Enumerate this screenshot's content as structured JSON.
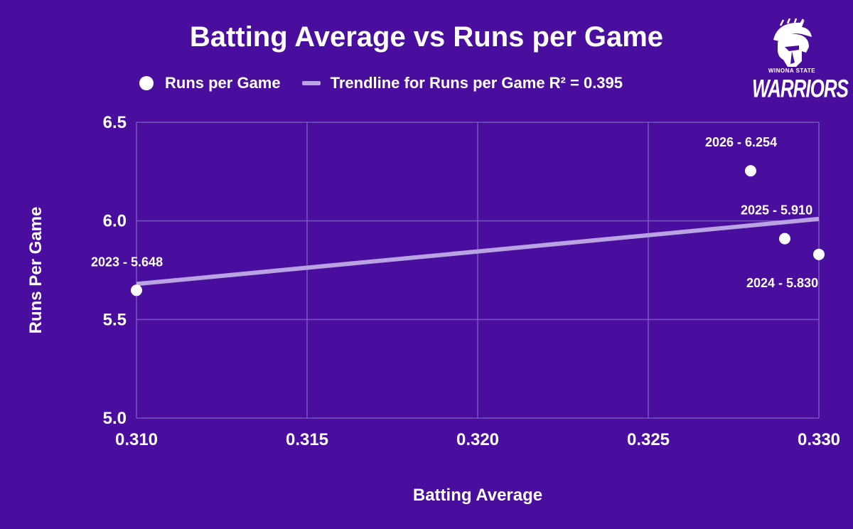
{
  "logo": {
    "subtitle": "WINONA STATE",
    "name": "WARRIORS",
    "icon": "warrior-helmet-icon"
  },
  "colors": {
    "background": "#4a0e9e",
    "grid": "#7a55c0",
    "trendline": "#b9a3e3",
    "points": "#ffffff"
  },
  "legend": {
    "series_label": "Runs per Game",
    "trend_label": "Trendline for Runs per Game R² = 0.395"
  },
  "chart_data": {
    "type": "scatter",
    "title": "Batting Average vs Runs per Game",
    "xlabel": "Batting Average",
    "ylabel": "Runs Per Game",
    "xlim": [
      0.31,
      0.33
    ],
    "ylim": [
      5.0,
      6.5
    ],
    "x_ticks": [
      "0.310",
      "0.315",
      "0.320",
      "0.325",
      "0.330"
    ],
    "y_ticks": [
      "5.0",
      "5.5",
      "6.0",
      "6.5"
    ],
    "grid": true,
    "legend_position": "top",
    "series": [
      {
        "name": "Runs per Game",
        "points": [
          {
            "x": 0.31,
            "y": 5.648,
            "label": "2023 - 5.648"
          },
          {
            "x": 0.33,
            "y": 5.83,
            "label": "2024 - 5.830"
          },
          {
            "x": 0.329,
            "y": 5.91,
            "label": "2025 - 5.910"
          },
          {
            "x": 0.328,
            "y": 6.254,
            "label": "2026 - 6.254"
          }
        ]
      }
    ],
    "trendline": {
      "name": "Trendline for Runs per Game",
      "r_squared": 0.395,
      "points": [
        {
          "x": 0.31,
          "y": 5.68
        },
        {
          "x": 0.33,
          "y": 6.01
        }
      ]
    }
  }
}
